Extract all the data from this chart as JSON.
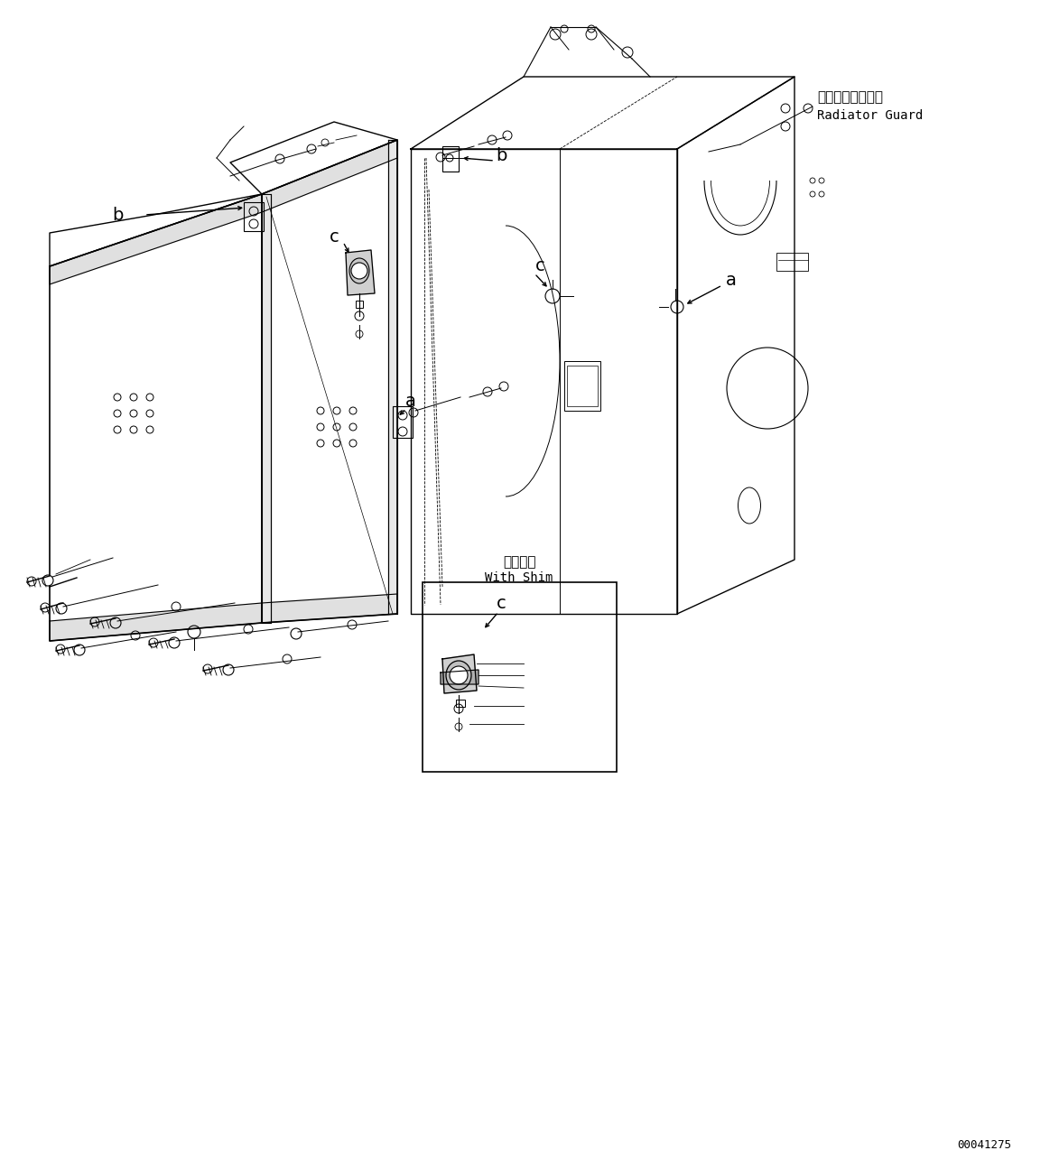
{
  "background_color": "#ffffff",
  "line_color": "#000000",
  "fig_width": 11.63,
  "fig_height": 12.95,
  "dpi": 100,
  "radiator_guard_japanese": "ラジエータガード",
  "radiator_guard_english": "Radiator Guard",
  "with_shim_japanese": "シム付き",
  "with_shim_english": "With Shim",
  "part_number": "00041275"
}
